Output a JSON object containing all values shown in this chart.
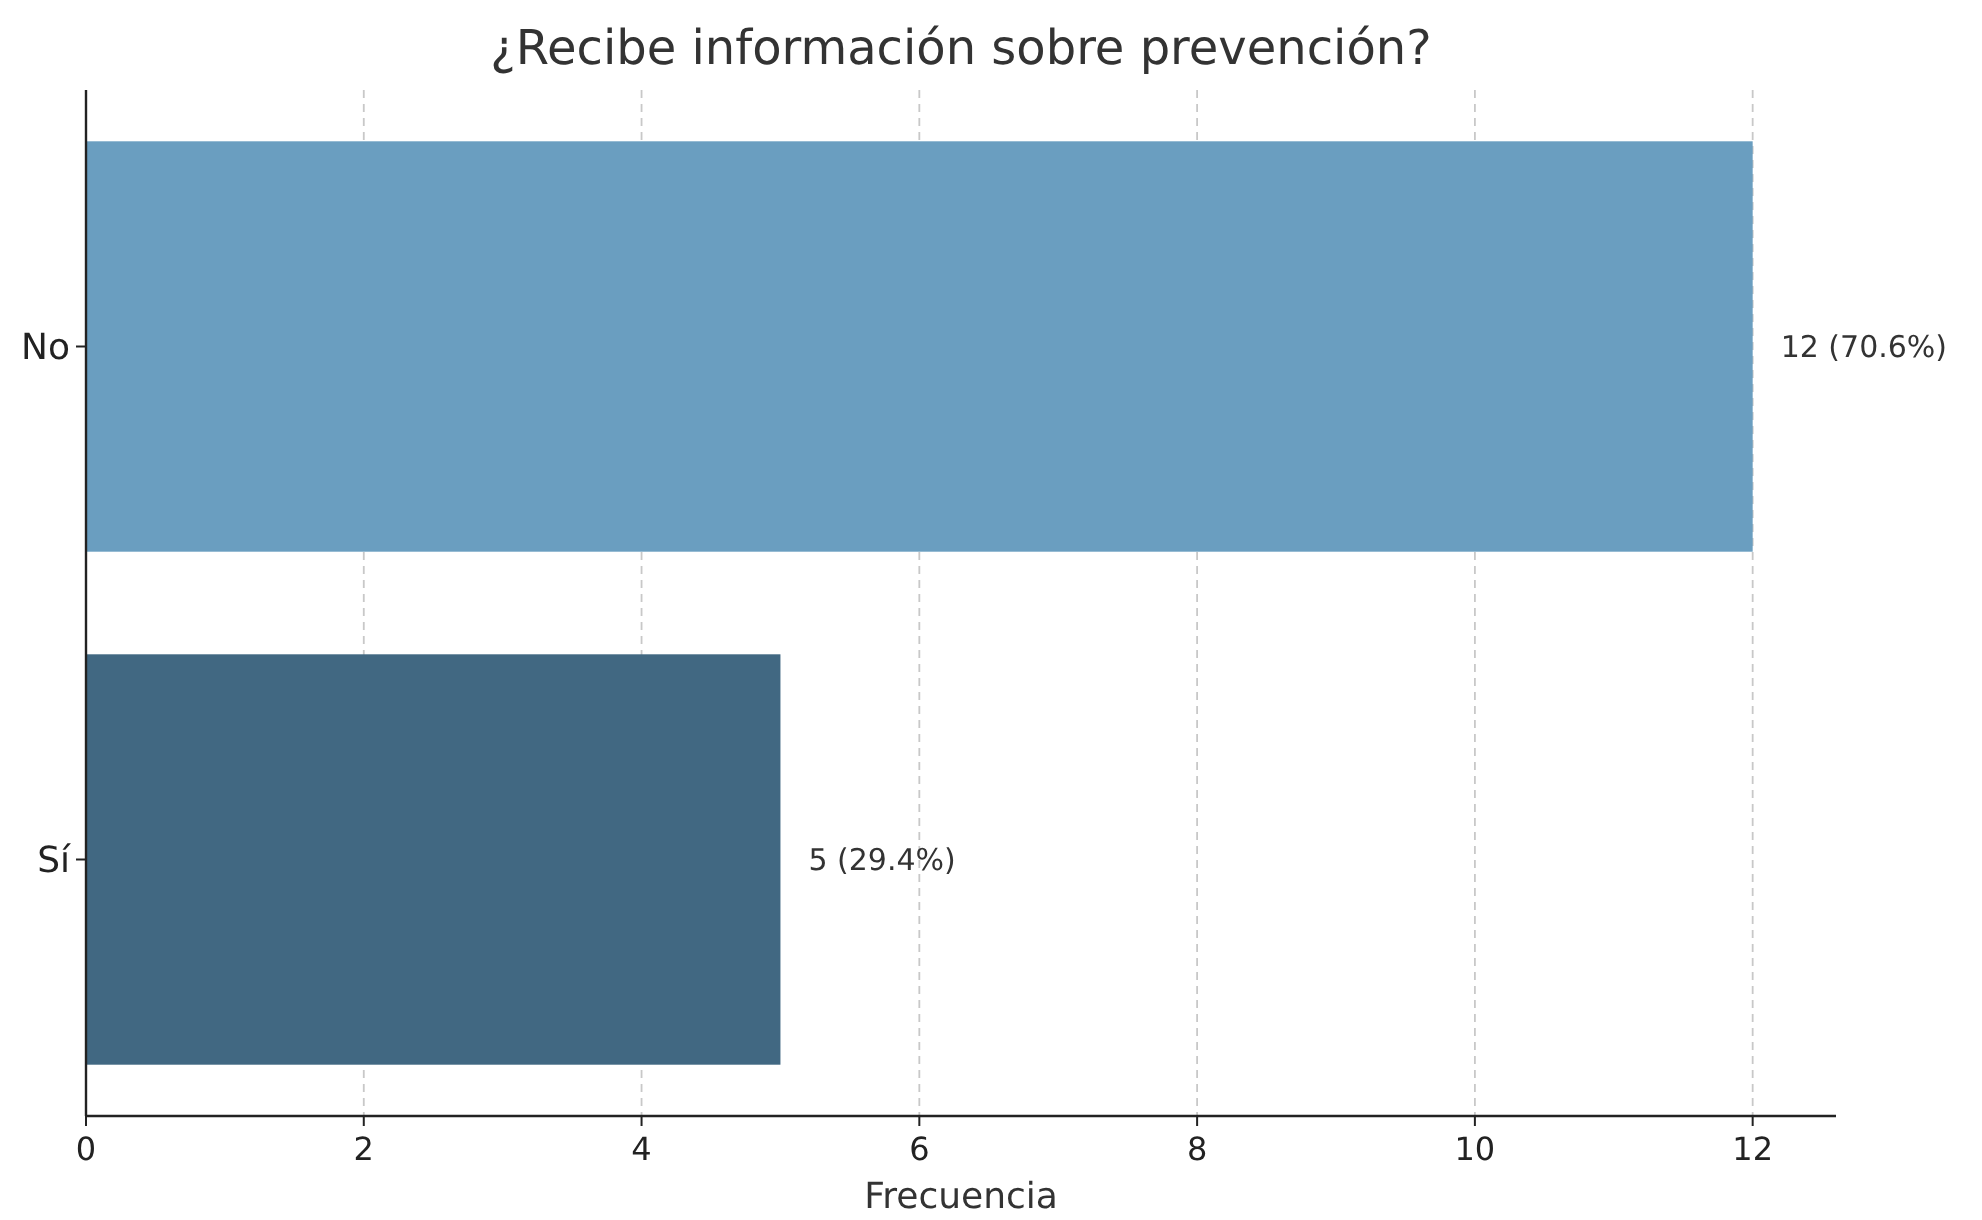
{
  "chart_data": {
    "type": "bar",
    "orientation": "horizontal",
    "title": "¿Recibe información sobre prevención?",
    "xlabel": "Frecuencia",
    "categories": [
      "No",
      "Sí"
    ],
    "values": [
      12,
      5
    ],
    "colors": [
      "#6a9ec0",
      "#416882"
    ],
    "value_labels": [
      "12 (70.6%)",
      "5 (29.4%)"
    ],
    "xlim": [
      0,
      12.6
    ],
    "xticks": [
      0,
      2,
      4,
      6,
      8,
      10,
      12
    ],
    "grid": "x"
  }
}
